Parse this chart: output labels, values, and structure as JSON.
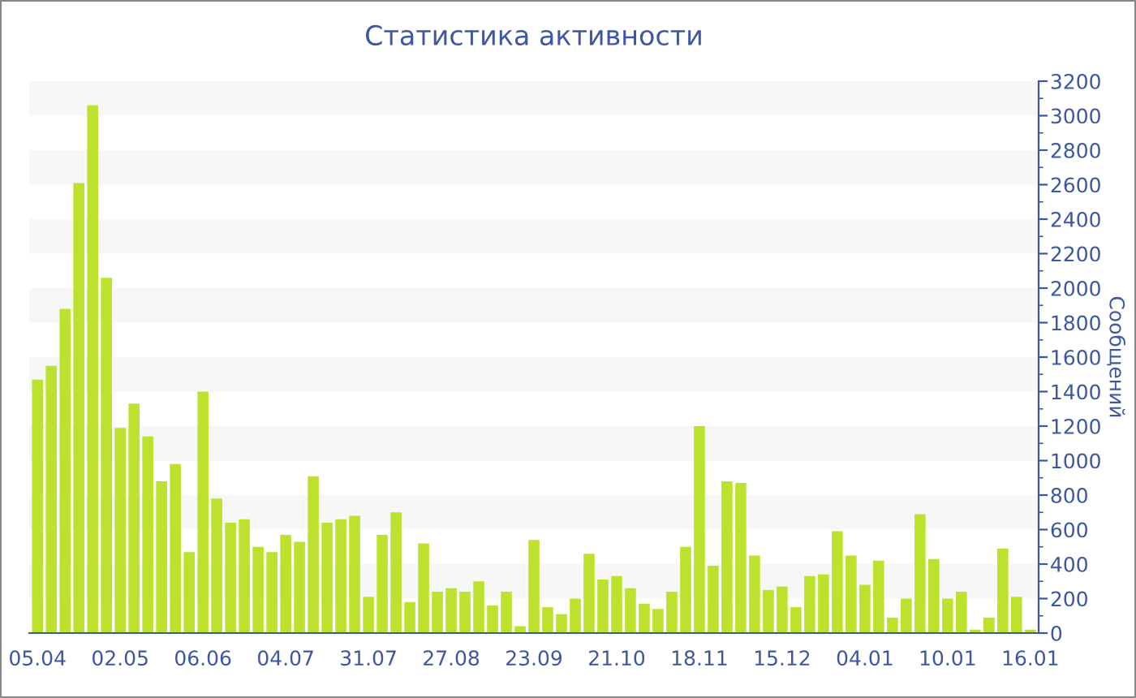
{
  "chart_data": {
    "type": "bar",
    "title": "Статистика активности",
    "ylabel": "Сообщений",
    "categories": [
      "05.04",
      null,
      null,
      null,
      null,
      null,
      "02.05",
      null,
      null,
      null,
      null,
      null,
      "06.06",
      null,
      null,
      null,
      null,
      null,
      "04.07",
      null,
      null,
      null,
      null,
      null,
      "31.07",
      null,
      null,
      null,
      null,
      null,
      "27.08",
      null,
      null,
      null,
      null,
      null,
      "23.09",
      null,
      null,
      null,
      null,
      null,
      "21.10",
      null,
      null,
      null,
      null,
      null,
      "18.11",
      null,
      null,
      null,
      null,
      null,
      "15.12",
      null,
      null,
      null,
      null,
      null,
      "04.01",
      null,
      null,
      null,
      null,
      null,
      "10.01",
      null,
      null,
      null,
      null,
      null,
      "16.01"
    ],
    "values": [
      1470,
      1550,
      1880,
      2610,
      3060,
      2060,
      1190,
      1330,
      1140,
      880,
      980,
      470,
      1400,
      780,
      640,
      660,
      500,
      470,
      570,
      530,
      910,
      640,
      660,
      680,
      210,
      570,
      700,
      180,
      520,
      240,
      260,
      240,
      300,
      160,
      240,
      40,
      540,
      150,
      110,
      200,
      460,
      310,
      330,
      260,
      170,
      140,
      240,
      500,
      1200,
      390,
      880,
      870,
      450,
      250,
      270,
      150,
      330,
      340,
      590,
      450,
      280,
      420,
      90,
      200,
      690,
      430,
      200,
      240,
      20,
      90,
      490,
      210,
      20
    ],
    "color": "#bde22d",
    "ylim": [
      0,
      3200
    ],
    "yticks": [
      0,
      200,
      400,
      600,
      800,
      1000,
      1200,
      1400,
      1600,
      1800,
      2000,
      2200,
      2400,
      2600,
      2800,
      3000,
      3200
    ],
    "bands": [
      {
        "axis": "y",
        "from": 200,
        "to": 400,
        "color": "#f7f7f7"
      },
      {
        "axis": "y",
        "from": 600,
        "to": 800,
        "color": "#f7f7f7"
      },
      {
        "axis": "y",
        "from": 1000,
        "to": 1200,
        "color": "#f7f7f7"
      },
      {
        "axis": "y",
        "from": 1400,
        "to": 1600,
        "color": "#f7f7f7"
      },
      {
        "axis": "y",
        "from": 1800,
        "to": 2000,
        "color": "#f7f7f7"
      },
      {
        "axis": "y",
        "from": 2200,
        "to": 2400,
        "color": "#f7f7f7"
      },
      {
        "axis": "y",
        "from": 2600,
        "to": 2800,
        "color": "#f7f7f7"
      },
      {
        "axis": "y",
        "from": 3000,
        "to": 3200,
        "color": "#f7f7f7"
      }
    ]
  }
}
